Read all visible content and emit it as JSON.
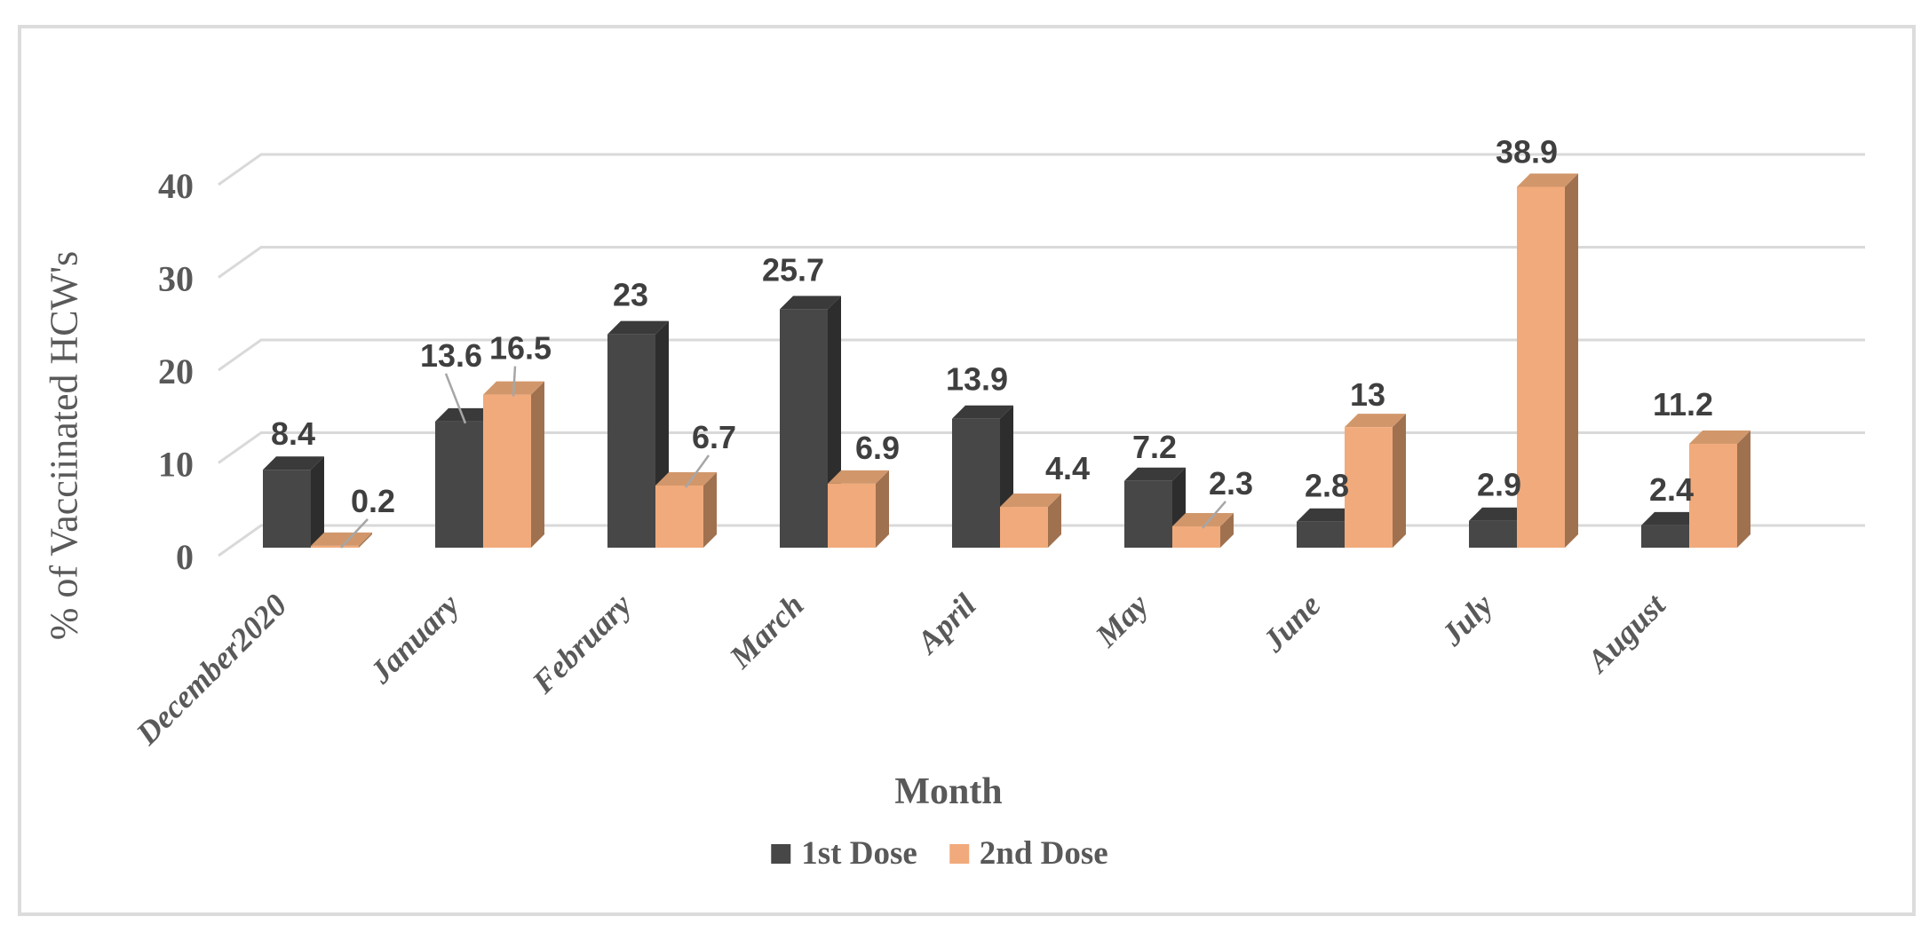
{
  "chart_data": {
    "type": "bar",
    "style": "3d-clustered-column",
    "title": "",
    "xlabel": "Month",
    "ylabel": "% of Vacciinated HCW's",
    "categories": [
      "December2020",
      "January",
      "February",
      "March",
      "April",
      "May",
      "June",
      "July",
      "August"
    ],
    "series": [
      {
        "name": "1st Dose",
        "values": [
          8.4,
          13.6,
          23,
          25.7,
          13.9,
          7.2,
          2.8,
          2.9,
          2.4
        ],
        "color_front": "#474747",
        "color_top": "#3A3A3A",
        "color_side": "#2D2D2D"
      },
      {
        "name": "2nd Dose",
        "values": [
          0.2,
          16.5,
          6.7,
          6.9,
          4.4,
          2.3,
          13,
          38.9,
          11.2
        ],
        "color_front": "#F1AA7B",
        "color_top": "#D1976B",
        "color_side": "#A0714F"
      }
    ],
    "yticks": [
      0,
      10,
      20,
      30,
      40
    ],
    "ylim": [
      0,
      40
    ],
    "grid": true,
    "legend_position": "bottom",
    "colors": {
      "grid": "#D9D9D9",
      "leader_line": "#A6A6A6",
      "axis_text": "#595959",
      "data_label_text": "#3F3F3F",
      "frame_border": "#DCDCDC"
    },
    "label_layout": {
      "offsets": [
        [
          [
            0,
            0
          ],
          [
            -16,
            -34
          ],
          [
            -8,
            -4
          ],
          [
            -19,
            -4
          ],
          [
            -6,
            -4
          ],
          [
            0,
            2
          ],
          [
            0,
            0
          ],
          [
            0,
            0
          ],
          [
            0,
            0
          ]
        ],
        [
          [
            36,
            -10
          ],
          [
            8,
            -12
          ],
          [
            32,
            -14
          ],
          [
            22,
            0
          ],
          [
            42,
            -3
          ],
          [
            32,
            -8
          ],
          [
            -8,
            4
          ],
          [
            -23,
            1
          ],
          [
            -41,
            -4
          ]
        ]
      ],
      "leader_indices": [
        [
          1
        ],
        [
          0,
          1,
          2,
          5
        ]
      ]
    }
  },
  "legend": {
    "items": [
      {
        "label": "1st Dose"
      },
      {
        "label": "2nd Dose"
      }
    ]
  }
}
